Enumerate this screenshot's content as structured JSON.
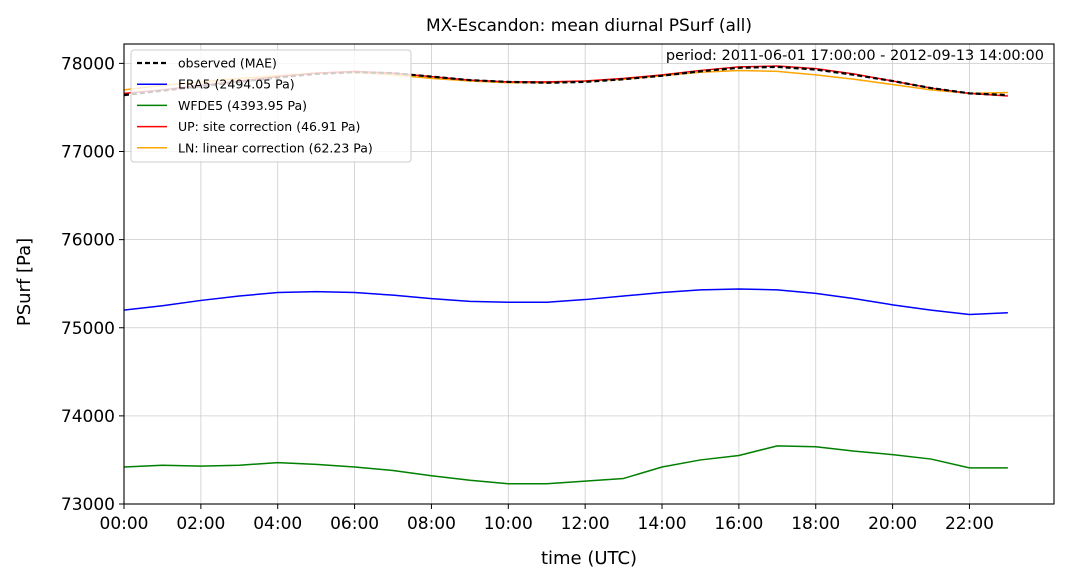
{
  "chart_data": {
    "type": "line",
    "title": "MX-Escandon: mean diurnal PSurf (all)",
    "annotation": "period: 2011-06-01 17:00:00 - 2012-09-13 14:00:00",
    "xlabel": "time (UTC)",
    "ylabel": "PSurf [Pa]",
    "xlim": [
      0,
      24.2
    ],
    "ylim": [
      73000,
      78220
    ],
    "x_ticks": [
      0,
      2,
      4,
      6,
      8,
      10,
      12,
      14,
      16,
      18,
      20,
      22
    ],
    "x_tick_labels": [
      "00:00",
      "02:00",
      "04:00",
      "06:00",
      "08:00",
      "10:00",
      "12:00",
      "14:00",
      "16:00",
      "18:00",
      "20:00",
      "22:00"
    ],
    "y_ticks": [
      73000,
      74000,
      75000,
      76000,
      77000,
      78000
    ],
    "y_tick_labels": [
      "73000",
      "74000",
      "75000",
      "76000",
      "77000",
      "78000"
    ],
    "grid": true,
    "legend_position": "top-left",
    "x": [
      0,
      1,
      2,
      3,
      4,
      5,
      6,
      7,
      8,
      9,
      10,
      11,
      12,
      13,
      14,
      15,
      16,
      17,
      18,
      19,
      20,
      21,
      22,
      23
    ],
    "series": [
      {
        "name": "LN: linear correction (62.23 Pa)",
        "color": "#ffa500",
        "style": "solid",
        "values": [
          77700,
          77750,
          77790,
          77830,
          77860,
          77890,
          77900,
          77870,
          77830,
          77800,
          77780,
          77780,
          77800,
          77820,
          77860,
          77900,
          77920,
          77910,
          77870,
          77820,
          77760,
          77700,
          77660,
          77670
        ]
      },
      {
        "name": "UP: site correction (46.91 Pa)",
        "color": "#ff0000",
        "style": "solid",
        "values": [
          77660,
          77700,
          77750,
          77800,
          77850,
          77890,
          77910,
          77890,
          77850,
          77810,
          77790,
          77790,
          77800,
          77830,
          77870,
          77920,
          77960,
          77970,
          77940,
          77880,
          77800,
          77720,
          77660,
          77630
        ]
      },
      {
        "name": "observed (MAE)",
        "color": "#000000",
        "style": "dashed",
        "values": [
          77640,
          77690,
          77740,
          77790,
          77840,
          77880,
          77900,
          77890,
          77850,
          77810,
          77790,
          77780,
          77790,
          77820,
          77860,
          77910,
          77950,
          77960,
          77930,
          77870,
          77800,
          77720,
          77660,
          77640
        ]
      },
      {
        "name": "ERA5 (2494.05 Pa)",
        "color": "#0000ff",
        "style": "solid",
        "values": [
          75200,
          75250,
          75310,
          75360,
          75400,
          75410,
          75400,
          75370,
          75330,
          75300,
          75290,
          75290,
          75320,
          75360,
          75400,
          75430,
          75440,
          75430,
          75390,
          75330,
          75260,
          75200,
          75150,
          75170
        ]
      },
      {
        "name": "WFDE5 (4393.95 Pa)",
        "color": "#008000",
        "style": "solid",
        "values": [
          73420,
          73440,
          73430,
          73440,
          73470,
          73450,
          73420,
          73380,
          73320,
          73270,
          73230,
          73230,
          73260,
          73290,
          73420,
          73500,
          73550,
          73660,
          73650,
          73600,
          73560,
          73510,
          73410,
          73410
        ]
      }
    ],
    "legend_order": [
      2,
      3,
      4,
      1,
      0
    ]
  }
}
